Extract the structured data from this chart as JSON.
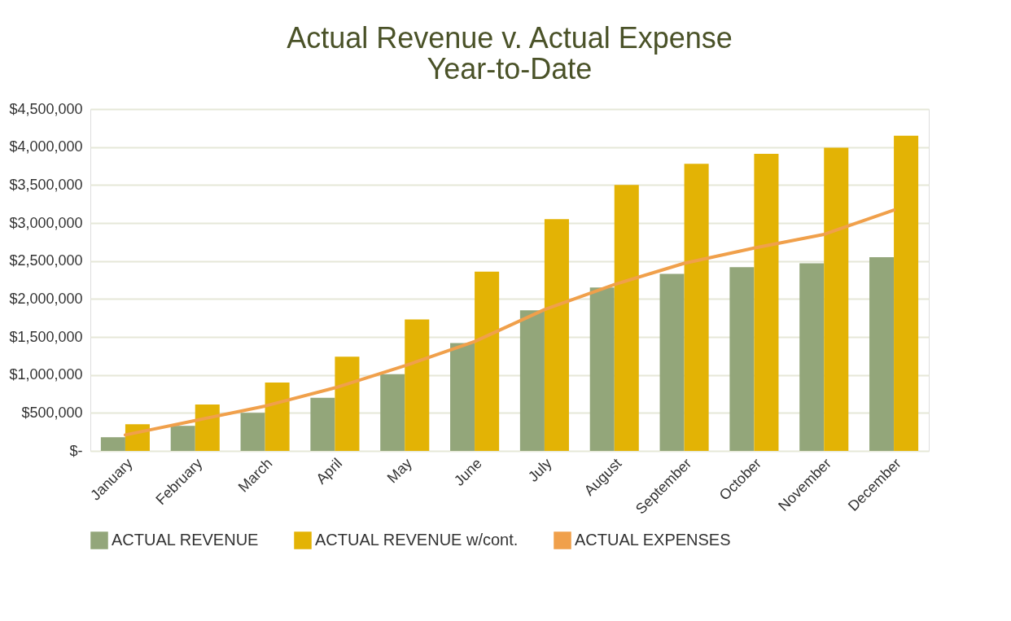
{
  "chart_data": {
    "type": "bar",
    "title": [
      "Actual Revenue v. Actual Expense",
      "Year-to-Date"
    ],
    "categories": [
      "January",
      "February",
      "March",
      "April",
      "May",
      "June",
      "July",
      "August",
      "September",
      "October",
      "November",
      "December"
    ],
    "series": [
      {
        "name": "ACTUAL REVENUE",
        "color": "#93a67a",
        "values": [
          180000,
          330000,
          500000,
          700000,
          1010000,
          1420000,
          1850000,
          2150000,
          2330000,
          2420000,
          2470000,
          2550000
        ]
      },
      {
        "name": "ACTUAL REVENUE w/cont.",
        "color": "#e3b305",
        "values": [
          350000,
          610000,
          900000,
          1240000,
          1730000,
          2360000,
          3050000,
          3500000,
          3780000,
          3910000,
          3990000,
          4150000
        ]
      },
      {
        "name": "ACTUAL EXPENSES",
        "type": "line",
        "color": "#f0a04b",
        "values": [
          210000,
          400000,
          590000,
          830000,
          1120000,
          1440000,
          1860000,
          2190000,
          2470000,
          2670000,
          2850000,
          3170000
        ]
      }
    ],
    "ylim": [
      0,
      4500000
    ],
    "yticks": [
      {
        "value": 0,
        "label": "$-"
      },
      {
        "value": 500000,
        "label": "$500,000"
      },
      {
        "value": 1000000,
        "label": "$1,000,000"
      },
      {
        "value": 1500000,
        "label": "$1,500,000"
      },
      {
        "value": 2000000,
        "label": "$2,000,000"
      },
      {
        "value": 2500000,
        "label": "$2,500,000"
      },
      {
        "value": 3000000,
        "label": "$3,000,000"
      },
      {
        "value": 3500000,
        "label": "$3,500,000"
      },
      {
        "value": 4000000,
        "label": "$4,000,000"
      },
      {
        "value": 4500000,
        "label": "$4,500,000"
      }
    ],
    "grid": "y",
    "legend": "bottom"
  }
}
